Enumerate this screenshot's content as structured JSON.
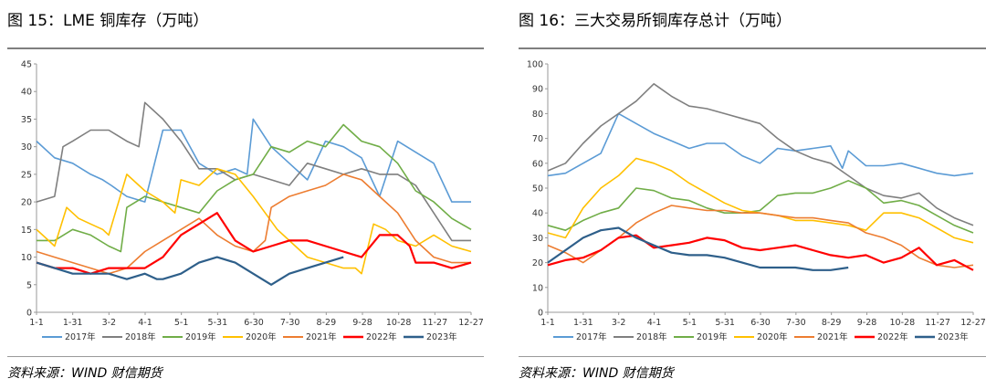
{
  "left": {
    "title": "图 15：LME 铜库存（万吨）",
    "source": "资料来源：WIND 财信期货"
  },
  "right": {
    "title": "图 16：三大交易所铜库存总计（万吨）",
    "source": "资料来源：WIND 财信期货"
  },
  "chart_data": [
    {
      "type": "line",
      "title": "LME 铜库存（万吨）",
      "x_ticks": [
        "1-1",
        "1-31",
        "3-2",
        "4-1",
        "5-1",
        "5-31",
        "6-30",
        "7-30",
        "8-29",
        "9-28",
        "10-28",
        "11-27",
        "12-27"
      ],
      "ylim": [
        0,
        45
      ],
      "y_ticks": [
        0,
        5,
        10,
        15,
        20,
        25,
        30,
        35,
        40,
        45
      ],
      "legend_position": "bottom",
      "series": [
        {
          "name": "2017年",
          "color": "#5b9bd5",
          "x": [
            0,
            15,
            30,
            45,
            55,
            62,
            75,
            90,
            105,
            120,
            135,
            150,
            165,
            175,
            180,
            195,
            210,
            225,
            240,
            255,
            270,
            285,
            300,
            315,
            330,
            345,
            355,
            361
          ],
          "values": [
            31,
            28,
            27,
            25,
            24,
            23,
            21,
            20,
            33,
            33,
            27,
            25,
            26,
            25,
            35,
            30,
            27,
            24,
            31,
            30,
            28,
            21,
            31,
            29,
            27,
            20,
            20,
            20
          ]
        },
        {
          "name": "2018年",
          "color": "#7f7f7f",
          "x": [
            0,
            15,
            22,
            30,
            45,
            60,
            75,
            85,
            90,
            105,
            120,
            135,
            150,
            165,
            180,
            195,
            210,
            225,
            240,
            255,
            270,
            285,
            300,
            315,
            330,
            345,
            361
          ],
          "values": [
            20,
            21,
            30,
            31,
            33,
            33,
            31,
            30,
            38,
            35,
            31,
            26,
            26,
            24,
            25,
            24,
            23,
            27,
            26,
            25,
            26,
            25,
            25,
            23,
            18,
            13,
            13
          ]
        },
        {
          "name": "2019年",
          "color": "#70ad47",
          "x": [
            0,
            15,
            30,
            45,
            60,
            70,
            75,
            90,
            105,
            120,
            135,
            150,
            165,
            180,
            195,
            210,
            225,
            240,
            255,
            270,
            285,
            300,
            315,
            330,
            345,
            361
          ],
          "values": [
            13,
            13,
            15,
            14,
            12,
            11,
            19,
            21,
            20,
            19,
            18,
            22,
            24,
            25,
            30,
            29,
            31,
            30,
            34,
            31,
            30,
            27,
            22,
            20,
            17,
            15
          ]
        },
        {
          "name": "2020年",
          "color": "#ffc000",
          "x": [
            0,
            10,
            15,
            25,
            35,
            45,
            55,
            60,
            75,
            90,
            105,
            115,
            120,
            135,
            150,
            165,
            180,
            190,
            200,
            215,
            225,
            240,
            255,
            265,
            270,
            280,
            290,
            300,
            315,
            330,
            345,
            361
          ],
          "values": [
            15,
            13,
            12,
            19,
            17,
            16,
            15,
            14,
            25,
            22,
            20,
            18,
            24,
            23,
            26,
            25,
            21,
            18,
            15,
            12,
            10,
            9,
            8,
            8,
            7,
            16,
            15,
            13,
            12,
            14,
            12,
            11
          ]
        },
        {
          "name": "2021年",
          "color": "#ed7d31",
          "x": [
            0,
            15,
            30,
            45,
            60,
            75,
            90,
            105,
            120,
            135,
            150,
            165,
            180,
            190,
            195,
            210,
            225,
            240,
            255,
            270,
            285,
            300,
            315,
            330,
            345,
            361
          ],
          "values": [
            11,
            10,
            9,
            8,
            7,
            8,
            11,
            13,
            15,
            17,
            14,
            12,
            11,
            13,
            19,
            21,
            22,
            23,
            25,
            24,
            21,
            18,
            13,
            10,
            9,
            9
          ]
        },
        {
          "name": "2022年",
          "color": "#ff0000",
          "x": [
            0,
            15,
            30,
            45,
            60,
            75,
            90,
            105,
            120,
            135,
            150,
            165,
            180,
            195,
            210,
            225,
            240,
            255,
            270,
            285,
            300,
            310,
            315,
            330,
            345,
            361
          ],
          "values": [
            9,
            8,
            8,
            7,
            8,
            8,
            8,
            10,
            14,
            16,
            18,
            13,
            11,
            12,
            13,
            13,
            12,
            11,
            10,
            14,
            14,
            12,
            9,
            9,
            8,
            9
          ]
        },
        {
          "name": "2023年",
          "color": "#2e5f8a",
          "x": [
            0,
            15,
            30,
            45,
            60,
            75,
            90,
            100,
            105,
            120,
            135,
            150,
            165,
            180,
            195,
            210,
            225,
            240,
            255
          ],
          "values": [
            9,
            8,
            7,
            7,
            7,
            6,
            7,
            6,
            6,
            7,
            9,
            10,
            9,
            7,
            5,
            7,
            8,
            9,
            10
          ]
        }
      ]
    },
    {
      "type": "line",
      "title": "三大交易所铜库存总计（万吨）",
      "x_ticks": [
        "1-1",
        "1-31",
        "3-2",
        "4-1",
        "5-1",
        "5-31",
        "6-30",
        "7-30",
        "8-29",
        "9-28",
        "10-28",
        "11-27",
        "12-27"
      ],
      "ylim": [
        0,
        100
      ],
      "y_ticks": [
        0,
        10,
        20,
        30,
        40,
        50,
        60,
        70,
        80,
        90,
        100
      ],
      "legend_position": "bottom",
      "series": [
        {
          "name": "2017年",
          "color": "#5b9bd5",
          "x": [
            0,
            15,
            30,
            45,
            60,
            75,
            90,
            105,
            120,
            135,
            150,
            165,
            180,
            195,
            210,
            225,
            240,
            250,
            255,
            270,
            285,
            300,
            315,
            330,
            345,
            361
          ],
          "values": [
            55,
            56,
            60,
            64,
            80,
            76,
            72,
            69,
            66,
            68,
            68,
            63,
            60,
            66,
            65,
            66,
            67,
            58,
            65,
            59,
            59,
            60,
            58,
            56,
            55,
            56
          ]
        },
        {
          "name": "2018年",
          "color": "#7f7f7f",
          "x": [
            0,
            15,
            30,
            45,
            60,
            75,
            90,
            105,
            120,
            135,
            150,
            165,
            180,
            195,
            210,
            225,
            240,
            255,
            270,
            285,
            300,
            315,
            330,
            345,
            361
          ],
          "values": [
            57,
            60,
            68,
            75,
            80,
            85,
            92,
            87,
            83,
            82,
            80,
            78,
            76,
            70,
            65,
            62,
            60,
            55,
            50,
            47,
            46,
            48,
            42,
            38,
            35
          ]
        },
        {
          "name": "2019年",
          "color": "#70ad47",
          "x": [
            0,
            15,
            30,
            45,
            60,
            75,
            90,
            105,
            120,
            135,
            150,
            165,
            180,
            195,
            210,
            225,
            240,
            255,
            270,
            285,
            300,
            315,
            330,
            345,
            361
          ],
          "values": [
            35,
            33,
            37,
            40,
            42,
            50,
            49,
            46,
            45,
            42,
            40,
            40,
            41,
            47,
            48,
            48,
            50,
            53,
            50,
            44,
            45,
            43,
            39,
            35,
            32
          ]
        },
        {
          "name": "2020年",
          "color": "#ffc000",
          "x": [
            0,
            15,
            30,
            45,
            60,
            75,
            90,
            105,
            120,
            135,
            150,
            165,
            180,
            195,
            210,
            225,
            240,
            255,
            270,
            285,
            300,
            315,
            330,
            345,
            361
          ],
          "values": [
            32,
            30,
            42,
            50,
            55,
            62,
            60,
            57,
            52,
            48,
            44,
            41,
            40,
            39,
            37,
            37,
            36,
            35,
            33,
            40,
            40,
            38,
            34,
            30,
            28
          ]
        },
        {
          "name": "2021年",
          "color": "#ed7d31",
          "x": [
            0,
            15,
            30,
            45,
            60,
            75,
            90,
            105,
            120,
            135,
            150,
            165,
            180,
            195,
            210,
            225,
            240,
            255,
            270,
            285,
            300,
            315,
            330,
            345,
            361
          ],
          "values": [
            27,
            24,
            20,
            25,
            30,
            36,
            40,
            43,
            42,
            41,
            41,
            40,
            40,
            39,
            38,
            38,
            37,
            36,
            32,
            30,
            27,
            22,
            19,
            18,
            19
          ]
        },
        {
          "name": "2022年",
          "color": "#ff0000",
          "x": [
            0,
            15,
            30,
            45,
            60,
            75,
            90,
            105,
            120,
            135,
            150,
            165,
            180,
            195,
            210,
            225,
            240,
            255,
            270,
            285,
            300,
            315,
            330,
            345,
            361
          ],
          "values": [
            19,
            21,
            22,
            25,
            30,
            31,
            26,
            27,
            28,
            30,
            29,
            26,
            25,
            26,
            27,
            25,
            23,
            22,
            23,
            20,
            22,
            26,
            19,
            21,
            17
          ]
        },
        {
          "name": "2023年",
          "color": "#2e5f8a",
          "x": [
            0,
            15,
            30,
            45,
            60,
            75,
            90,
            105,
            120,
            135,
            150,
            165,
            180,
            195,
            210,
            225,
            240,
            255
          ],
          "values": [
            20,
            25,
            30,
            33,
            34,
            30,
            27,
            24,
            23,
            23,
            22,
            20,
            18,
            18,
            18,
            17,
            17,
            18
          ]
        }
      ]
    }
  ]
}
